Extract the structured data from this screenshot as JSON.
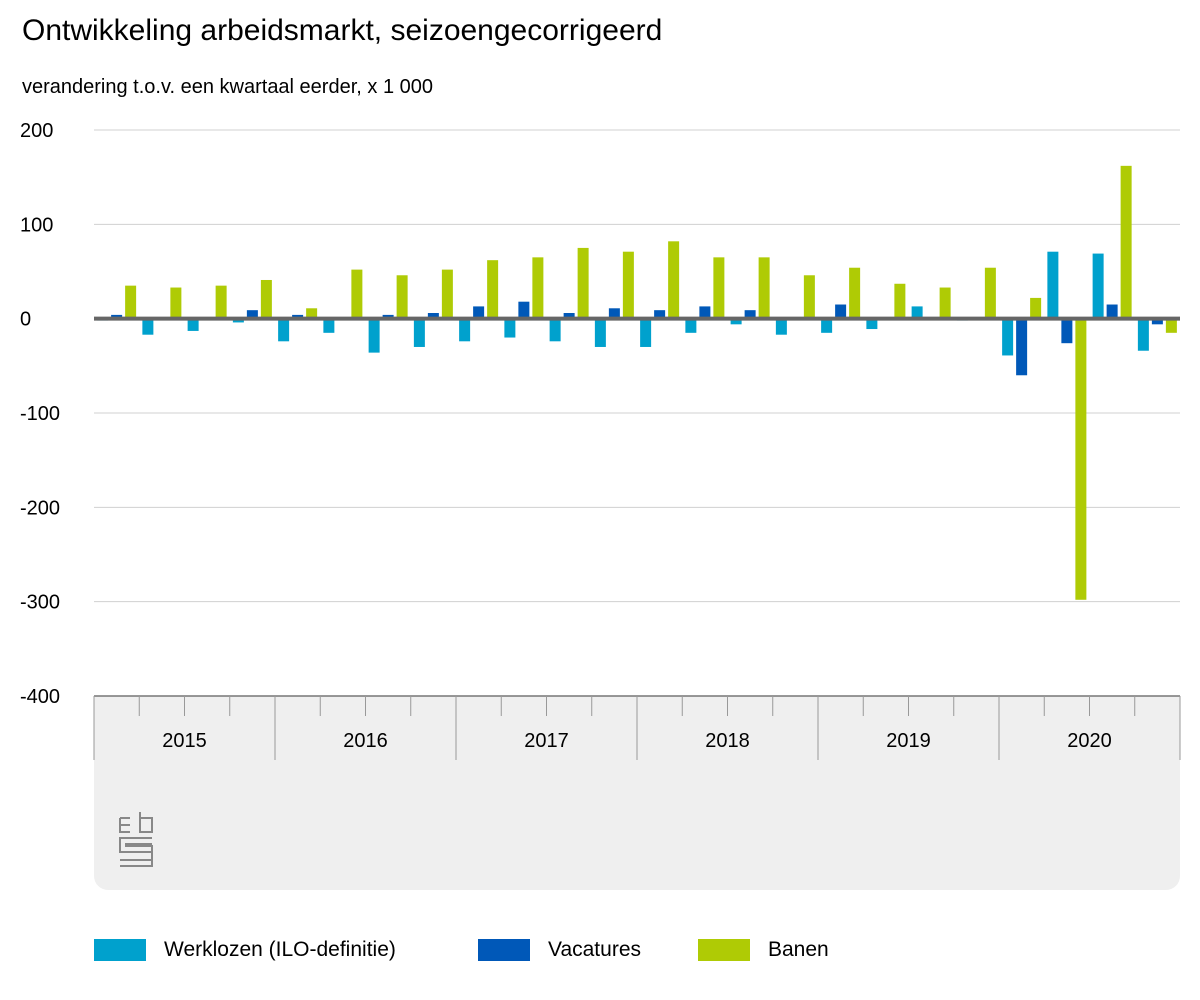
{
  "chart_data": {
    "type": "bar",
    "title": "Ontwikkeling arbeidsmarkt, seizoengecorrigeerd",
    "subtitle": "verandering t.o.v. een kwartaal eerder, x 1 000",
    "ylim": [
      -400,
      200
    ],
    "yticks": [
      200,
      100,
      0,
      -100,
      -200,
      -300,
      -400
    ],
    "grid": true,
    "legend_placement": "bottom",
    "years": [
      "2015",
      "2016",
      "2017",
      "2018",
      "2019",
      "2020"
    ],
    "categories": [
      "2015 Q1",
      "2015 Q2",
      "2015 Q3",
      "2015 Q4",
      "2016 Q1",
      "2016 Q2",
      "2016 Q3",
      "2016 Q4",
      "2017 Q1",
      "2017 Q2",
      "2017 Q3",
      "2017 Q4",
      "2018 Q1",
      "2018 Q2",
      "2018 Q3",
      "2018 Q4",
      "2019 Q1",
      "2019 Q2",
      "2019 Q3",
      "2019 Q4",
      "2020 Q1",
      "2020 Q2",
      "2020 Q3",
      "2020 Q4"
    ],
    "series": [
      {
        "name": "Werklozen (ILO-definitie)",
        "color": "#00a1cd",
        "values": [
          -2,
          -17,
          -13,
          -4,
          -24,
          -15,
          -36,
          -30,
          -24,
          -20,
          -24,
          -30,
          -30,
          -15,
          -6,
          -17,
          -15,
          -11,
          13,
          -2,
          -39,
          71,
          69,
          -34
        ]
      },
      {
        "name": "Vacatures",
        "color": "#0058b8",
        "values": [
          4,
          1,
          0,
          9,
          4,
          1,
          4,
          6,
          13,
          18,
          6,
          11,
          9,
          13,
          9,
          0,
          15,
          0,
          0,
          0,
          -60,
          -26,
          15,
          -6
        ]
      },
      {
        "name": "Banen",
        "color": "#afcb05",
        "values": [
          35,
          33,
          35,
          41,
          11,
          52,
          46,
          52,
          62,
          65,
          75,
          71,
          82,
          65,
          65,
          46,
          54,
          37,
          33,
          54,
          22,
          -298,
          162,
          -15
        ]
      }
    ]
  },
  "logo": "cbs"
}
